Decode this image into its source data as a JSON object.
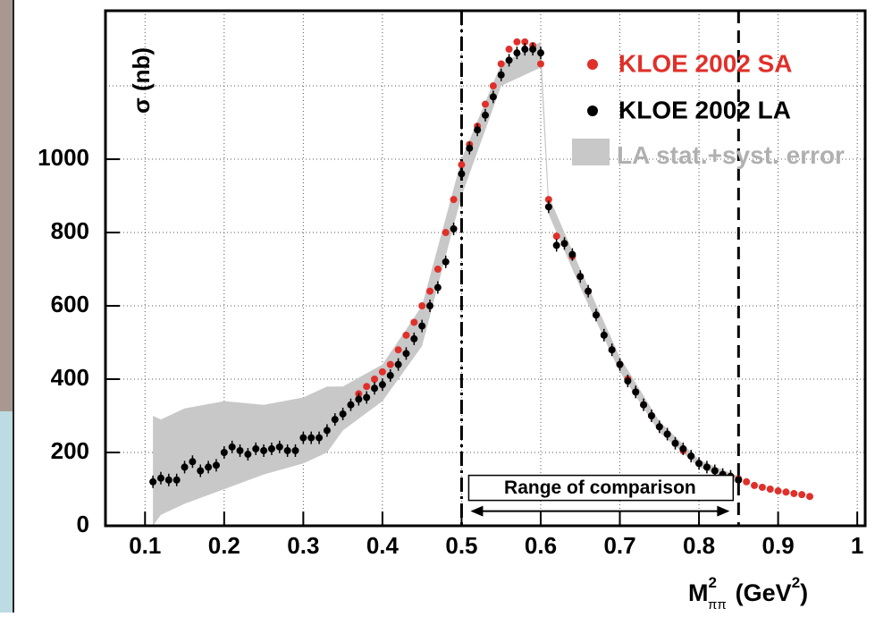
{
  "chart_data": {
    "type": "scatter",
    "y_label": "σ (nb)",
    "x_label": {
      "base": "M",
      "sup": "2",
      "sub": "ππ",
      "unit": "(GeV",
      "unit_sup": "2",
      "close": ")"
    },
    "xlim": [
      0.05,
      1.01
    ],
    "ylim": [
      0,
      1405
    ],
    "xticks": [
      0.1,
      0.2,
      0.3,
      0.4,
      0.5,
      0.6,
      0.7,
      0.8,
      0.9,
      1
    ],
    "yticks": [
      0,
      200,
      400,
      600,
      800,
      1000
    ],
    "ygrid": [
      200,
      400,
      600,
      800,
      1000,
      1200
    ],
    "grid": true,
    "vlines": [
      {
        "x": 0.5,
        "style": "dashdot"
      },
      {
        "x": 0.85,
        "style": "dashed"
      }
    ],
    "range_annotation": {
      "from": 0.5,
      "to": 0.85,
      "y": 40,
      "label": "Range of comparison"
    },
    "band": {
      "name": "LA stat.+syst. error",
      "color": "#c8c8c8",
      "x": [
        0.11,
        0.12,
        0.15,
        0.2,
        0.25,
        0.3,
        0.33,
        0.35,
        0.4,
        0.45,
        0.5,
        0.55,
        0.6,
        0.61,
        0.65,
        0.7,
        0.75,
        0.8,
        0.85
      ],
      "lower": [
        0,
        30,
        60,
        100,
        140,
        170,
        200,
        260,
        340,
        490,
        900,
        1200,
        1250,
        850,
        650,
        420,
        255,
        160,
        115
      ],
      "upper": [
        300,
        290,
        320,
        340,
        330,
        350,
        380,
        380,
        440,
        600,
        1000,
        1260,
        1320,
        900,
        700,
        460,
        285,
        180,
        135
      ]
    },
    "series": [
      {
        "name": "KLOE 2002 SA",
        "color": "#e0302a",
        "x": [
          0.36,
          0.37,
          0.38,
          0.39,
          0.4,
          0.41,
          0.42,
          0.43,
          0.44,
          0.45,
          0.46,
          0.47,
          0.48,
          0.49,
          0.5,
          0.51,
          0.52,
          0.53,
          0.54,
          0.55,
          0.56,
          0.57,
          0.58,
          0.59,
          0.6,
          0.61,
          0.62,
          0.63,
          0.64,
          0.65,
          0.66,
          0.67,
          0.68,
          0.69,
          0.7,
          0.71,
          0.72,
          0.73,
          0.74,
          0.75,
          0.76,
          0.77,
          0.78,
          0.79,
          0.8,
          0.81,
          0.82,
          0.83,
          0.84,
          0.85,
          0.86,
          0.87,
          0.88,
          0.89,
          0.9,
          0.91,
          0.92,
          0.93,
          0.94
        ],
        "values": [
          330,
          360,
          380,
          400,
          420,
          440,
          480,
          520,
          555,
          600,
          640,
          700,
          800,
          890,
          985,
          1040,
          1090,
          1150,
          1200,
          1260,
          1300,
          1320,
          1320,
          1310,
          1260,
          890,
          790,
          770,
          735,
          680,
          640,
          575,
          520,
          480,
          440,
          400,
          365,
          330,
          300,
          270,
          250,
          225,
          205,
          190,
          170,
          160,
          150,
          140,
          135,
          128,
          120,
          110,
          105,
          100,
          95,
          92,
          88,
          85,
          80
        ]
      },
      {
        "name": "KLOE 2002 LA",
        "color": "#000000",
        "x": [
          0.11,
          0.12,
          0.13,
          0.14,
          0.15,
          0.16,
          0.17,
          0.18,
          0.19,
          0.2,
          0.21,
          0.22,
          0.23,
          0.24,
          0.25,
          0.26,
          0.27,
          0.28,
          0.29,
          0.3,
          0.31,
          0.32,
          0.33,
          0.34,
          0.35,
          0.36,
          0.37,
          0.38,
          0.39,
          0.4,
          0.41,
          0.42,
          0.43,
          0.44,
          0.45,
          0.46,
          0.47,
          0.48,
          0.49,
          0.5,
          0.51,
          0.52,
          0.53,
          0.54,
          0.55,
          0.56,
          0.57,
          0.58,
          0.59,
          0.6,
          0.61,
          0.62,
          0.63,
          0.64,
          0.65,
          0.66,
          0.67,
          0.68,
          0.69,
          0.7,
          0.71,
          0.72,
          0.73,
          0.74,
          0.75,
          0.76,
          0.77,
          0.78,
          0.79,
          0.8,
          0.81,
          0.82,
          0.83,
          0.84,
          0.85
        ],
        "values": [
          120,
          130,
          125,
          125,
          160,
          175,
          150,
          160,
          165,
          200,
          215,
          205,
          195,
          210,
          205,
          210,
          215,
          205,
          205,
          240,
          240,
          240,
          260,
          290,
          305,
          330,
          345,
          350,
          375,
          385,
          410,
          440,
          470,
          510,
          545,
          600,
          650,
          720,
          810,
          960,
          1030,
          1080,
          1120,
          1170,
          1230,
          1270,
          1290,
          1300,
          1300,
          1290,
          870,
          765,
          770,
          740,
          680,
          640,
          575,
          520,
          480,
          440,
          395,
          365,
          330,
          300,
          270,
          250,
          225,
          210,
          190,
          170,
          160,
          150,
          140,
          135,
          125
        ]
      }
    ]
  }
}
